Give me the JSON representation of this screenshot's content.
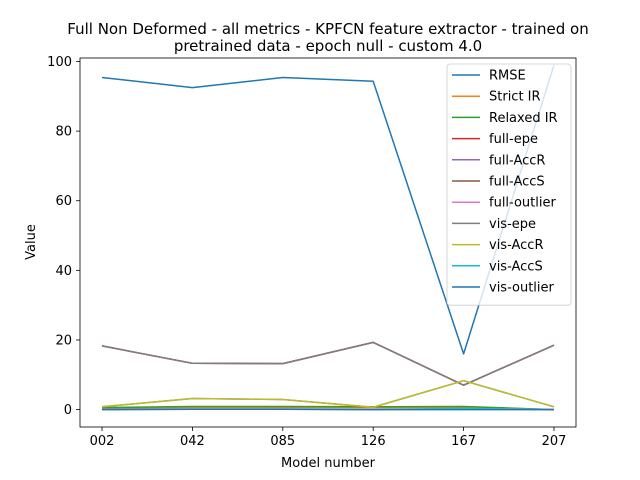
{
  "chart_data": {
    "type": "line",
    "title_lines": [
      "Full Non Deformed - all metrics - KPFCN feature extractor -  trained on",
      "pretrained data -  epoch null - custom 4.0"
    ],
    "xlabel": "Model number",
    "ylabel": "Value",
    "categories": [
      "002",
      "042",
      "085",
      "126",
      "167",
      "207"
    ],
    "yticks": [
      0,
      20,
      40,
      60,
      80,
      100
    ],
    "ylim": [
      -5,
      101
    ],
    "legend_position": "top-right",
    "series": [
      {
        "name": "RMSE",
        "color": "#1f77b4",
        "values": [
          95.4,
          92.5,
          95.4,
          94.3,
          16.0,
          99.0
        ]
      },
      {
        "name": "Strict IR",
        "color": "#ff7f0e",
        "values": [
          0.4,
          0.7,
          0.7,
          0.6,
          0.7,
          0.0
        ]
      },
      {
        "name": "Relaxed IR",
        "color": "#2ca02c",
        "values": [
          0.6,
          0.9,
          0.9,
          0.8,
          0.9,
          0.0
        ]
      },
      {
        "name": "full-epe",
        "color": "#d62728",
        "values": [
          18.3,
          13.3,
          13.2,
          19.3,
          7.0,
          18.5
        ]
      },
      {
        "name": "full-AccR",
        "color": "#9467bd",
        "values": [
          0.8,
          3.2,
          2.9,
          0.7,
          8.3,
          0.8
        ]
      },
      {
        "name": "full-AccS",
        "color": "#8c564b",
        "values": [
          18.3,
          13.3,
          13.2,
          19.3,
          7.0,
          18.5
        ]
      },
      {
        "name": "full-outlier",
        "color": "#e377c2",
        "values": [
          0.1,
          0.2,
          0.2,
          0.1,
          0.3,
          0.1
        ]
      },
      {
        "name": "vis-epe",
        "color": "#7f7f7f",
        "values": [
          18.3,
          13.3,
          13.2,
          19.3,
          7.0,
          18.5
        ]
      },
      {
        "name": "vis-AccR",
        "color": "#bcbd22",
        "values": [
          0.8,
          3.2,
          2.9,
          0.7,
          8.3,
          0.8
        ]
      },
      {
        "name": "vis-AccS",
        "color": "#17becf",
        "values": [
          0.0,
          0.1,
          0.1,
          0.0,
          0.3,
          0.0
        ]
      },
      {
        "name": "vis-outlier",
        "color": "#1f77b4",
        "values": [
          0.0,
          0.1,
          0.1,
          0.0,
          0.0,
          0.0
        ]
      }
    ]
  }
}
